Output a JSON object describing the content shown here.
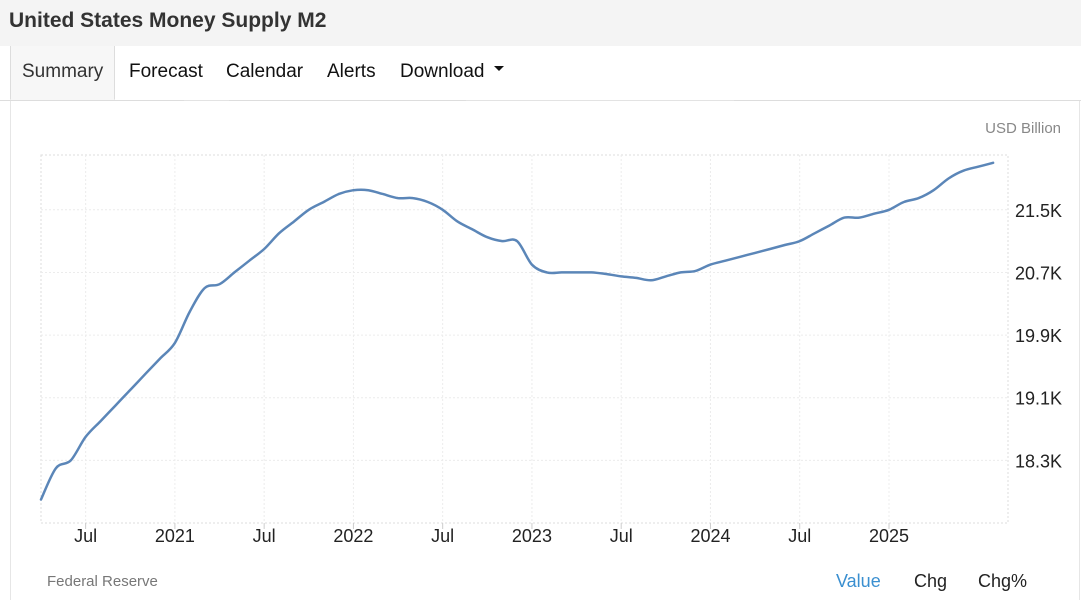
{
  "page_title": "United States Money Supply M2",
  "tabs": [
    {
      "label": "Summary",
      "active": true
    },
    {
      "label": "Forecast",
      "active": false
    },
    {
      "label": "Calendar",
      "active": false
    },
    {
      "label": "Alerts",
      "active": false
    },
    {
      "label": "Download",
      "active": false,
      "dropdown": true
    }
  ],
  "unit_label": "USD Billion",
  "source": "Federal Reserve",
  "value_tabs": [
    {
      "label": "Value",
      "active": true
    },
    {
      "label": "Chg",
      "active": false
    },
    {
      "label": "Chg%",
      "active": false
    }
  ],
  "colors": {
    "line": "#5b86b8",
    "active_tab_text": "#3a8fd0",
    "grid": "#ececec"
  },
  "chart_data": {
    "type": "line",
    "title": "",
    "xlabel": "",
    "ylabel": "",
    "x_tick_labels": [
      "Jul",
      "2021",
      "Jul",
      "2022",
      "Jul",
      "2023",
      "Jul",
      "2024",
      "Jul",
      "2025"
    ],
    "x_tick_dates": [
      "2020-07",
      "2021-01",
      "2021-07",
      "2022-01",
      "2022-07",
      "2023-01",
      "2023-07",
      "2024-01",
      "2024-07",
      "2025-01"
    ],
    "y_tick_labels": [
      "18.3K",
      "19.1K",
      "19.9K",
      "20.7K",
      "21.5K"
    ],
    "y_tick_values": [
      18300,
      19100,
      19900,
      20700,
      21500
    ],
    "ylim": [
      17500,
      22200
    ],
    "xlim": [
      "2020-04",
      "2025-09"
    ],
    "grid": true,
    "y_axis_side": "right",
    "series": [
      {
        "x": [
          "2020-04",
          "2020-05",
          "2020-06",
          "2020-07",
          "2020-08",
          "2020-09",
          "2020-10",
          "2020-11",
          "2020-12",
          "2021-01",
          "2021-02",
          "2021-03",
          "2021-04",
          "2021-05",
          "2021-06",
          "2021-07",
          "2021-08",
          "2021-09",
          "2021-10",
          "2021-11",
          "2021-12",
          "2022-01",
          "2022-02",
          "2022-03",
          "2022-04",
          "2022-05",
          "2022-06",
          "2022-07",
          "2022-08",
          "2022-09",
          "2022-10",
          "2022-11",
          "2022-12",
          "2023-01",
          "2023-02",
          "2023-03",
          "2023-04",
          "2023-05",
          "2023-06",
          "2023-07",
          "2023-08",
          "2023-09",
          "2023-10",
          "2023-11",
          "2023-12",
          "2024-01",
          "2024-02",
          "2024-03",
          "2024-04",
          "2024-05",
          "2024-06",
          "2024-07",
          "2024-08",
          "2024-09",
          "2024-10",
          "2024-11",
          "2024-12",
          "2025-01",
          "2025-02",
          "2025-03",
          "2025-04",
          "2025-05",
          "2025-06",
          "2025-07",
          "2025-08"
        ],
        "values": [
          17800,
          18200,
          18300,
          18600,
          18800,
          19000,
          19200,
          19400,
          19600,
          19800,
          20200,
          20500,
          20550,
          20700,
          20850,
          21000,
          21200,
          21350,
          21500,
          21600,
          21700,
          21750,
          21750,
          21700,
          21650,
          21650,
          21600,
          21500,
          21350,
          21250,
          21150,
          21100,
          21100,
          20800,
          20700,
          20700,
          20700,
          20700,
          20680,
          20650,
          20630,
          20600,
          20650,
          20700,
          20720,
          20800,
          20850,
          20900,
          20950,
          21000,
          21050,
          21100,
          21200,
          21300,
          21400,
          21400,
          21450,
          21500,
          21600,
          21650,
          21750,
          21900,
          22000,
          22050,
          22100
        ]
      }
    ]
  }
}
